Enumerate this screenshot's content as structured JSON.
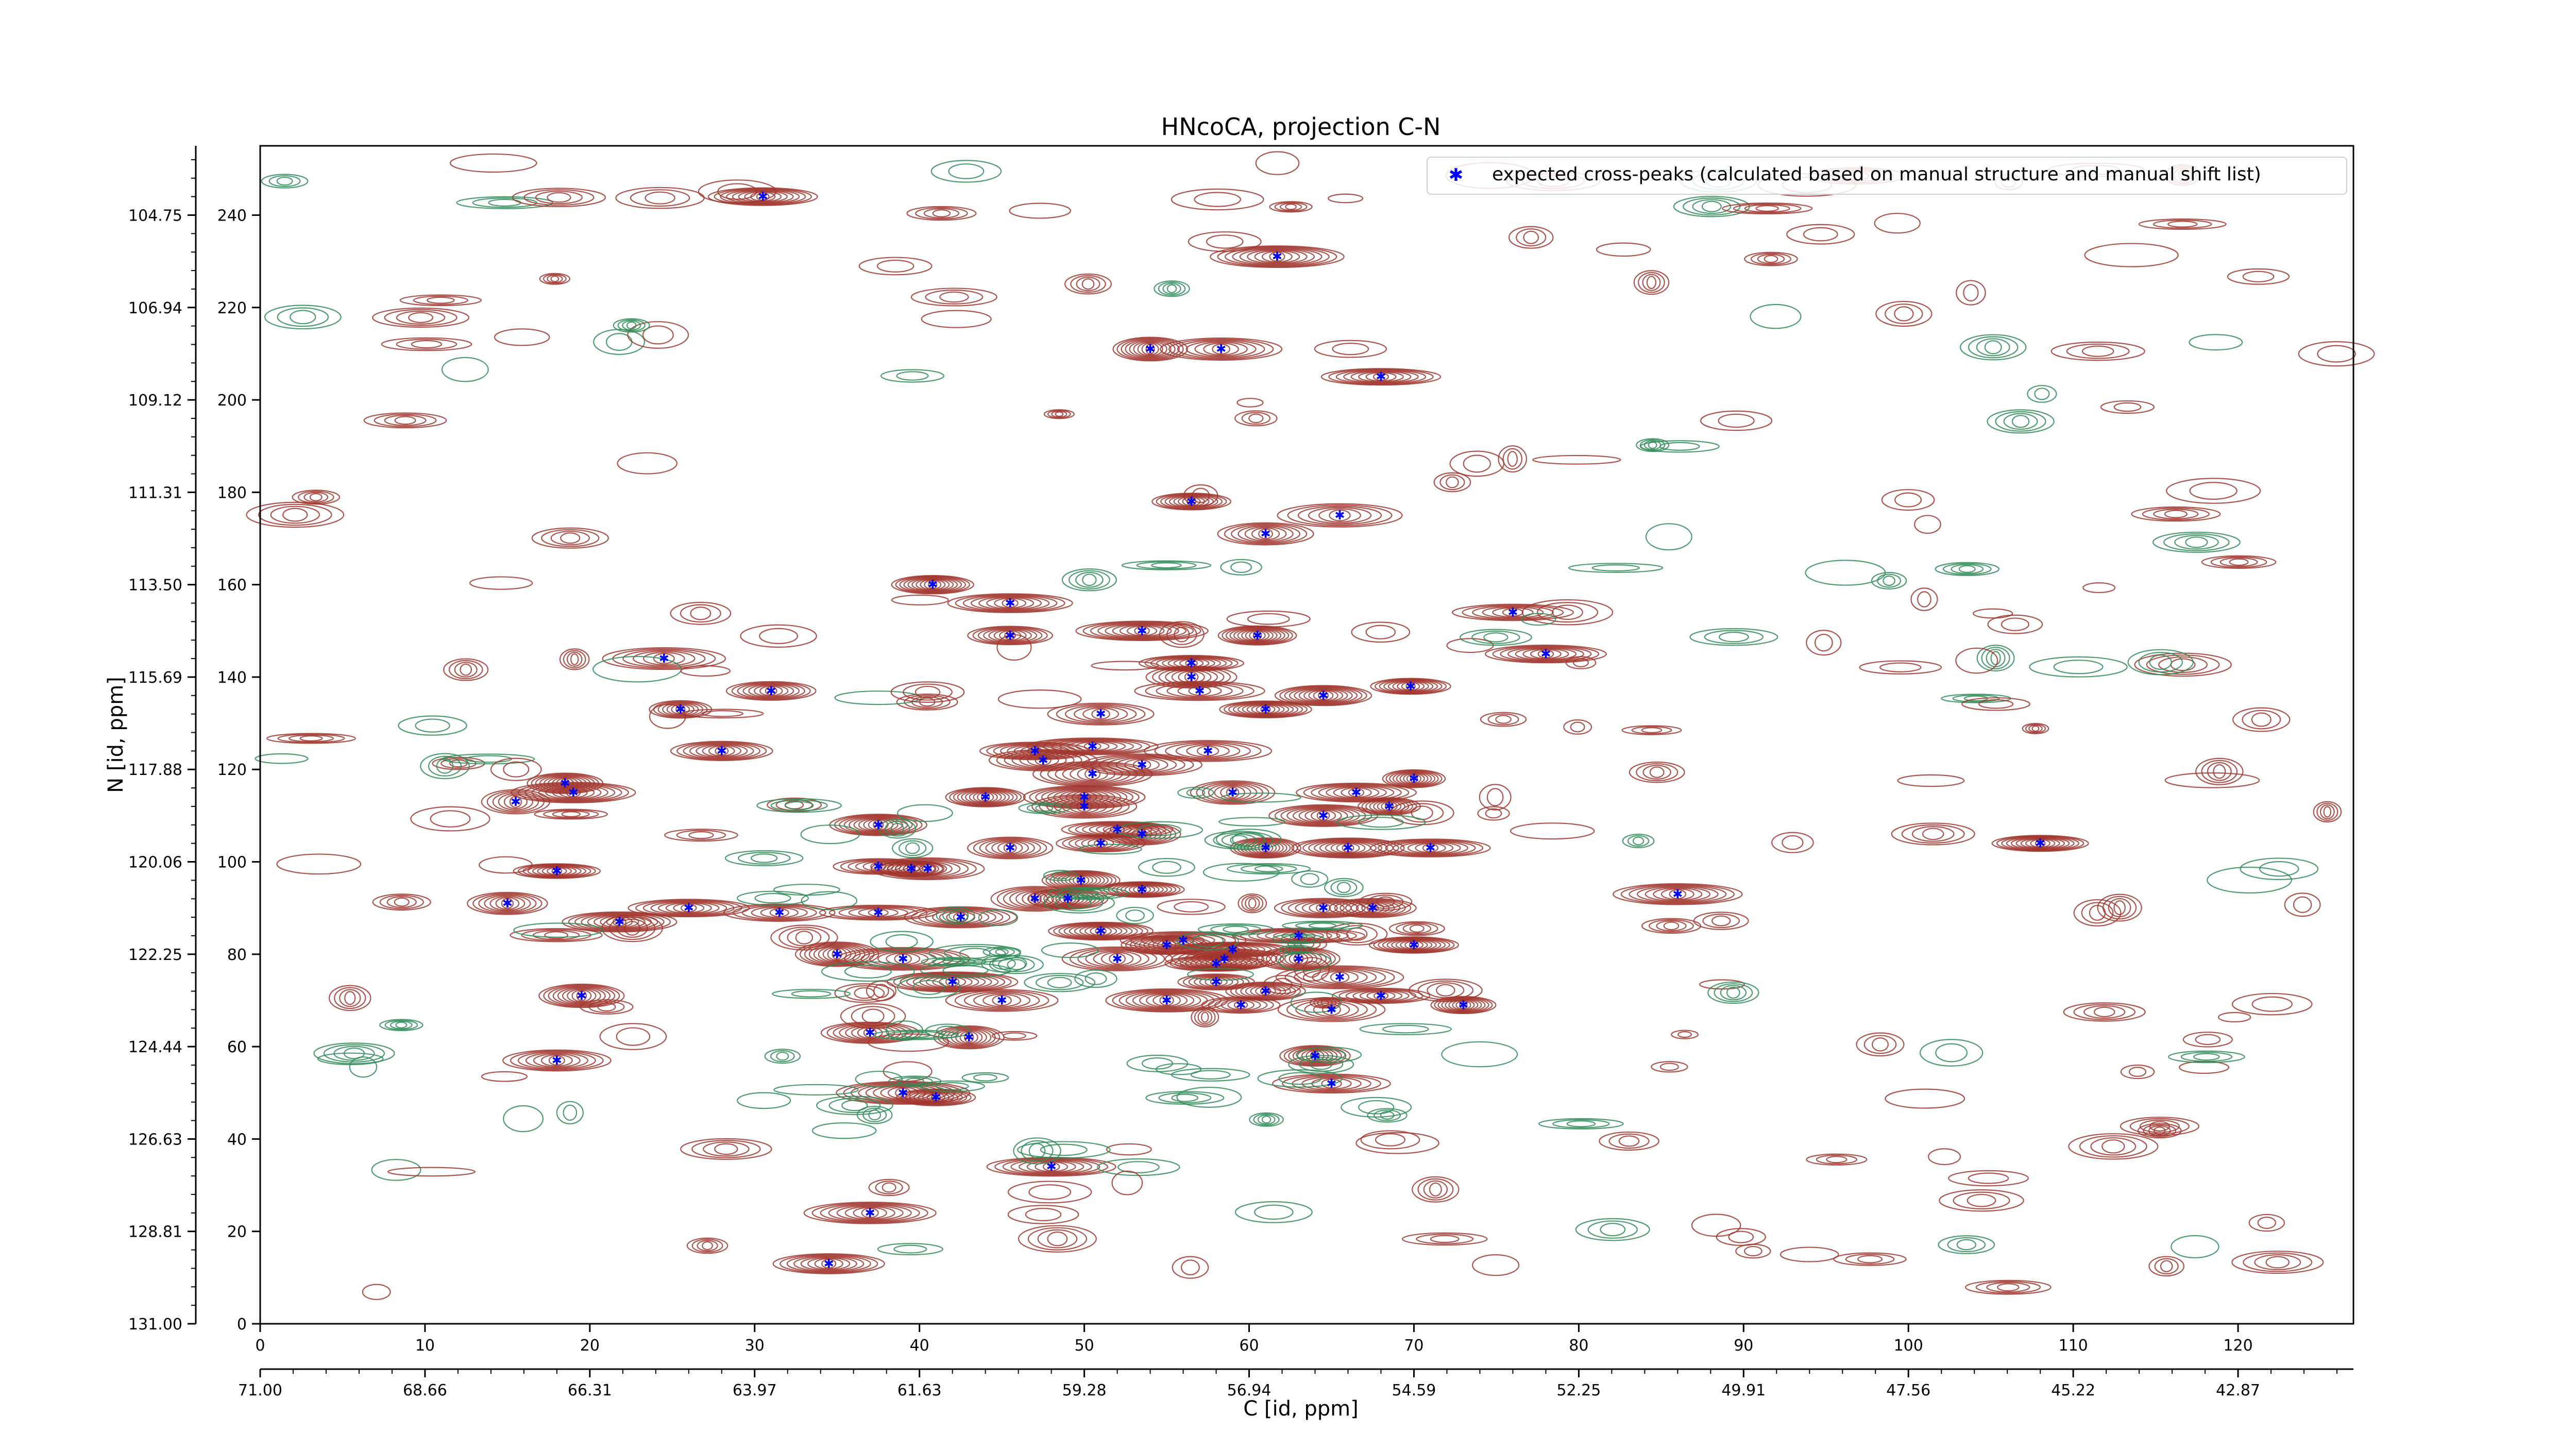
{
  "chart_data": {
    "type": "scatter",
    "title": "HNcoCA, projection C-N",
    "xlabel": "C [id, ppm]",
    "ylabel": "N [id, ppm]",
    "x_index_range": [
      0,
      127
    ],
    "y_index_range": [
      0,
      255
    ],
    "x_index_ticks": [
      "0",
      "10",
      "20",
      "30",
      "40",
      "50",
      "60",
      "70",
      "80",
      "90",
      "100",
      "110",
      "120"
    ],
    "x_ppm_ticks": [
      "71.00",
      "68.66",
      "66.31",
      "63.97",
      "61.63",
      "59.28",
      "56.94",
      "54.59",
      "52.25",
      "49.91",
      "47.56",
      "45.22",
      "42.87"
    ],
    "y_index_ticks": [
      "0",
      "20",
      "40",
      "60",
      "80",
      "100",
      "120",
      "140",
      "160",
      "180",
      "200",
      "220",
      "240"
    ],
    "y_ppm_ticks": [
      "131.00",
      "128.81",
      "126.63",
      "124.44",
      "122.25",
      "120.06",
      "117.88",
      "115.69",
      "113.50",
      "111.31",
      "109.12",
      "106.94",
      "104.75"
    ],
    "legend": {
      "placement": "top-right",
      "entries": [
        "expected cross-peaks (calculated based on manual structure and manual shift list)"
      ]
    },
    "colors": {
      "positive_contours": "#a0342c",
      "negative_contours": "#2e8b57",
      "marker": "#0000ff"
    },
    "series": [
      {
        "name": "expected cross-peaks (calculated based on manual structure and manual shift list)",
        "points": [
          [
            30.5,
            244
          ],
          [
            61.7,
            231
          ],
          [
            54,
            211
          ],
          [
            58.3,
            211
          ],
          [
            68,
            205
          ],
          [
            56.5,
            178
          ],
          [
            65.5,
            175
          ],
          [
            61,
            171
          ],
          [
            40.8,
            160
          ],
          [
            45.5,
            156
          ],
          [
            76,
            154
          ],
          [
            45.5,
            149
          ],
          [
            53.5,
            150
          ],
          [
            60.5,
            149
          ],
          [
            78,
            145
          ],
          [
            24.5,
            144
          ],
          [
            56.5,
            143
          ],
          [
            56.5,
            140
          ],
          [
            31,
            137
          ],
          [
            57,
            137
          ],
          [
            69.8,
            138
          ],
          [
            25.5,
            133
          ],
          [
            61,
            133
          ],
          [
            64.5,
            136
          ],
          [
            51,
            132
          ],
          [
            28,
            124
          ],
          [
            47,
            124
          ],
          [
            50.5,
            125
          ],
          [
            57.5,
            124
          ],
          [
            47.5,
            122
          ],
          [
            53.5,
            121
          ],
          [
            50.5,
            119
          ],
          [
            18.5,
            117
          ],
          [
            19,
            115
          ],
          [
            15.5,
            113
          ],
          [
            44,
            114
          ],
          [
            59,
            115
          ],
          [
            66.5,
            115
          ],
          [
            70,
            118
          ],
          [
            50,
            114
          ],
          [
            50,
            112
          ],
          [
            68.5,
            112
          ],
          [
            64.5,
            110
          ],
          [
            37.5,
            108
          ],
          [
            52,
            107
          ],
          [
            53.5,
            106
          ],
          [
            45.5,
            103
          ],
          [
            51,
            104
          ],
          [
            61,
            103
          ],
          [
            66,
            103
          ],
          [
            71,
            103
          ],
          [
            108,
            104
          ],
          [
            18,
            98
          ],
          [
            37.5,
            99
          ],
          [
            39.5,
            98.5
          ],
          [
            40.5,
            98.5
          ],
          [
            49.8,
            96
          ],
          [
            53.5,
            94
          ],
          [
            47,
            92
          ],
          [
            49,
            92
          ],
          [
            15,
            91
          ],
          [
            26,
            90
          ],
          [
            21.8,
            87
          ],
          [
            31.5,
            89
          ],
          [
            37.5,
            89
          ],
          [
            64.5,
            90
          ],
          [
            42.5,
            88
          ],
          [
            67.5,
            90
          ],
          [
            51,
            85
          ],
          [
            86,
            93
          ],
          [
            56,
            83
          ],
          [
            55,
            82
          ],
          [
            63,
            84
          ],
          [
            70,
            82
          ],
          [
            35,
            80
          ],
          [
            39,
            79
          ],
          [
            52,
            79
          ],
          [
            58.5,
            79
          ],
          [
            58,
            78
          ],
          [
            59,
            81
          ],
          [
            63,
            79
          ],
          [
            42,
            74
          ],
          [
            58,
            74
          ],
          [
            65.5,
            75
          ],
          [
            19.5,
            71
          ],
          [
            45,
            70
          ],
          [
            55,
            70
          ],
          [
            59.5,
            69
          ],
          [
            61,
            72
          ],
          [
            68,
            71
          ],
          [
            65,
            68
          ],
          [
            73,
            69
          ],
          [
            37,
            63
          ],
          [
            43,
            62
          ],
          [
            18,
            57
          ],
          [
            64,
            58
          ],
          [
            65,
            52
          ],
          [
            39,
            50
          ],
          [
            41,
            49
          ],
          [
            48,
            34
          ],
          [
            37,
            24
          ],
          [
            34.5,
            13
          ]
        ]
      }
    ]
  }
}
